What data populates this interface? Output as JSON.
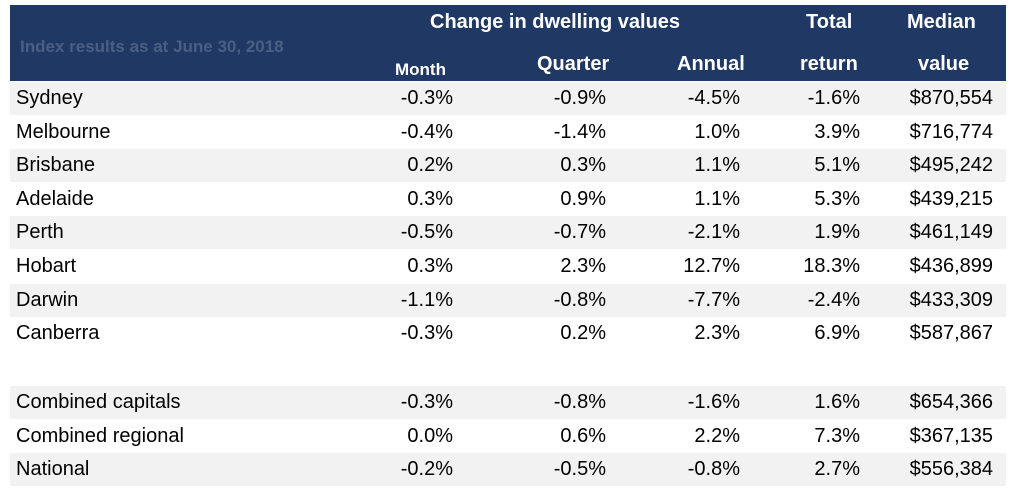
{
  "table": {
    "caption": "Index results as at June 30, 2018",
    "group_header": "Change in dwelling values",
    "columns": {
      "month": "Month",
      "quarter": "Quarter",
      "annual": "Annual",
      "total_line1": "Total",
      "total_line2": "return",
      "median_line1": "Median",
      "median_line2": "value"
    },
    "rows": [
      [
        "Sydney",
        "-0.3%",
        "-0.9%",
        "-4.5%",
        "-1.6%",
        "$870,554"
      ],
      [
        "Melbourne",
        "-0.4%",
        "-1.4%",
        "1.0%",
        "3.9%",
        "$716,774"
      ],
      [
        "Brisbane",
        "0.2%",
        "0.3%",
        "1.1%",
        "5.1%",
        "$495,242"
      ],
      [
        "Adelaide",
        "0.3%",
        "0.9%",
        "1.1%",
        "5.3%",
        "$439,215"
      ],
      [
        "Perth",
        "-0.5%",
        "-0.7%",
        "-2.1%",
        "1.9%",
        "$461,149"
      ],
      [
        "Hobart",
        "0.3%",
        "2.3%",
        "12.7%",
        "18.3%",
        "$436,899"
      ],
      [
        "Darwin",
        "-1.1%",
        "-0.8%",
        "-7.7%",
        "-2.4%",
        "$433,309"
      ],
      [
        "Canberra",
        "-0.3%",
        "0.2%",
        "2.3%",
        "6.9%",
        "$587,867"
      ]
    ],
    "summary_rows": [
      [
        "Combined capitals",
        "-0.3%",
        "-0.8%",
        "-1.6%",
        "1.6%",
        "$654,366"
      ],
      [
        "Combined regional",
        "0.0%",
        "0.6%",
        "2.2%",
        "7.3%",
        "$367,135"
      ],
      [
        "National",
        "-0.2%",
        "-0.5%",
        "-0.8%",
        "2.7%",
        "$556,384"
      ]
    ]
  }
}
